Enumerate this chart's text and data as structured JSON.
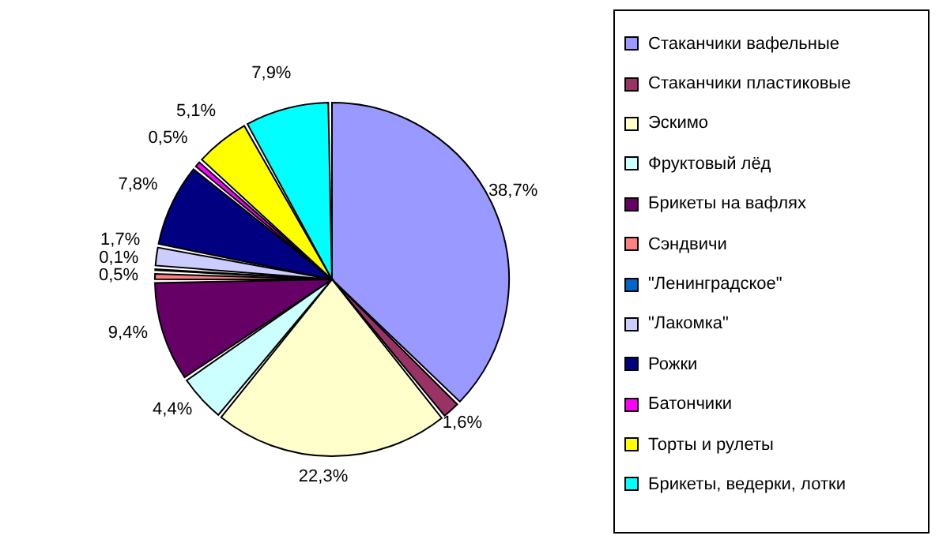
{
  "chart_data": {
    "type": "pie",
    "categories": [
      "Стаканчики вафельные",
      "Стаканчики пластиковые",
      "Эскимо",
      "Фруктовый лёд",
      "Брикеты на вафлях",
      "Сэндвичи",
      "\"Ленинградское\"",
      "\"Лакомка\"",
      "Рожки",
      "Батончики",
      "Торты и рулеты",
      "Брикеты, ведерки, лотки"
    ],
    "values": [
      38.7,
      1.6,
      22.3,
      4.4,
      9.4,
      0.5,
      0.1,
      1.7,
      7.8,
      0.5,
      5.1,
      7.9
    ],
    "value_labels": [
      "38,7%",
      "1,6%",
      "22,3%",
      "4,4%",
      "9,4%",
      "0,5%",
      "0,1%",
      "1,7%",
      "7,8%",
      "0,5%",
      "5,1%",
      "7,9%"
    ],
    "colors": [
      "#9999ff",
      "#993366",
      "#ffffcc",
      "#ccffff",
      "#660066",
      "#ff8080",
      "#0066cc",
      "#ccccff",
      "#000080",
      "#ff00ff",
      "#ffff00",
      "#00ffff"
    ],
    "legend": "right"
  }
}
